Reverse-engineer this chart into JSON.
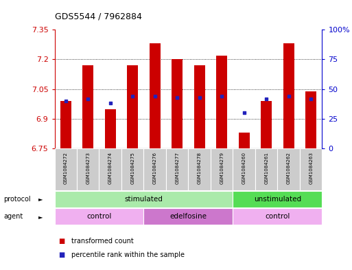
{
  "title": "GDS5544 / 7962884",
  "samples": [
    "GSM1084272",
    "GSM1084273",
    "GSM1084274",
    "GSM1084275",
    "GSM1084276",
    "GSM1084277",
    "GSM1084278",
    "GSM1084279",
    "GSM1084260",
    "GSM1084261",
    "GSM1084262",
    "GSM1084263"
  ],
  "bar_values": [
    6.99,
    7.17,
    6.95,
    7.17,
    7.28,
    7.2,
    7.17,
    7.22,
    6.83,
    6.99,
    7.28,
    7.04
  ],
  "bar_base": 6.75,
  "percentile_values": [
    40,
    42,
    38,
    44,
    44,
    43,
    43,
    44,
    30,
    42,
    44,
    42
  ],
  "percentile_scale_max": 100,
  "ylim_left": [
    6.75,
    7.35
  ],
  "yticks_left": [
    6.75,
    6.9,
    7.05,
    7.2,
    7.35
  ],
  "ytick_labels_left": [
    "6.75",
    "6.9",
    "7.05",
    "7.2",
    "7.35"
  ],
  "yticks_right": [
    0,
    25,
    50,
    75,
    100
  ],
  "ytick_labels_right": [
    "0",
    "25",
    "50",
    "75",
    "100%"
  ],
  "bar_color": "#cc0000",
  "dot_color": "#2222bb",
  "bg_color": "#ffffff",
  "grid_color": "#000000",
  "protocol_stimulated_color": "#aaeaaa",
  "protocol_unstimulated_color": "#55dd55",
  "agent_control_color": "#f0b0f0",
  "agent_edelfosine_color": "#cc77cc",
  "protocol_row": [
    {
      "label": "stimulated",
      "start": 0,
      "end": 8
    },
    {
      "label": "unstimulated",
      "start": 8,
      "end": 12
    }
  ],
  "agent_row": [
    {
      "label": "control",
      "start": 0,
      "end": 4
    },
    {
      "label": "edelfosine",
      "start": 4,
      "end": 8
    },
    {
      "label": "control",
      "start": 8,
      "end": 12
    }
  ],
  "left_axis_color": "#cc0000",
  "right_axis_color": "#0000cc",
  "bar_width": 0.5
}
